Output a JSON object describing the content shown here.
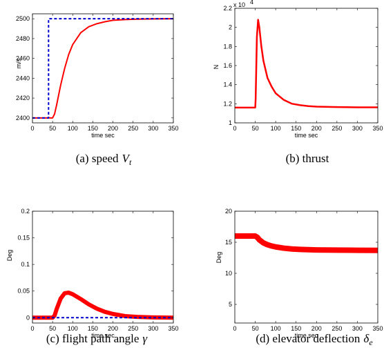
{
  "chart_data": [
    {
      "type": "line",
      "caption": "(a) speed",
      "caption_symbol": "V",
      "caption_sub": "t",
      "xlabel": "time sec",
      "ylabel": "m/s",
      "xlim": [
        0,
        350
      ],
      "ylim": [
        2395,
        2505
      ],
      "xticks": [
        "0",
        "50",
        "100",
        "150",
        "200",
        "250",
        "300",
        "350"
      ],
      "yticks": [
        "2400",
        "2420",
        "2440",
        "2460",
        "2480",
        "2500"
      ],
      "series": [
        {
          "role": "response",
          "color": "#ff0000",
          "style": "solid",
          "width": 2,
          "x": [
            0,
            50,
            55,
            60,
            70,
            80,
            90,
            100,
            120,
            140,
            160,
            180,
            200,
            230,
            260,
            300,
            350
          ],
          "y": [
            2400,
            2400,
            2404,
            2413,
            2433,
            2450,
            2464,
            2474,
            2486,
            2492,
            2495,
            2497,
            2498.5,
            2499.2,
            2499.6,
            2499.9,
            2500
          ]
        },
        {
          "role": "reference",
          "color": "#0000cc",
          "style": "dashed",
          "width": 2,
          "x": [
            0,
            40,
            40,
            350
          ],
          "y": [
            2400,
            2400,
            2500,
            2500
          ]
        }
      ]
    },
    {
      "type": "line",
      "caption": "(b) thrust",
      "xlabel": "time sec",
      "ylabel": "N",
      "exponent_label": "x 10",
      "exponent_power": "4",
      "xlim": [
        0,
        350
      ],
      "ylim": [
        1.0,
        2.2
      ],
      "xticks": [
        "0",
        "50",
        "100",
        "150",
        "200",
        "250",
        "300",
        "350"
      ],
      "yticks": [
        "1",
        "1.2",
        "1.4",
        "1.6",
        "1.8",
        "2",
        "2.2"
      ],
      "series": [
        {
          "role": "response",
          "color": "#ff0000",
          "style": "solid",
          "width": 2.5,
          "x": [
            0,
            50,
            51,
            54,
            57,
            60,
            65,
            70,
            80,
            90,
            100,
            120,
            140,
            160,
            180,
            200,
            250,
            300,
            350
          ],
          "y": [
            1.16,
            1.16,
            1.25,
            1.9,
            2.08,
            2.0,
            1.8,
            1.65,
            1.47,
            1.38,
            1.31,
            1.24,
            1.2,
            1.185,
            1.175,
            1.17,
            1.165,
            1.163,
            1.163
          ]
        }
      ]
    },
    {
      "type": "line",
      "caption": "(c) flight path angle",
      "caption_symbol": "γ",
      "xlabel": "time sec",
      "ylabel": "Deg",
      "xlim": [
        0,
        350
      ],
      "ylim": [
        -0.01,
        0.2
      ],
      "xticks": [
        "0",
        "50",
        "100",
        "150",
        "200",
        "250",
        "300",
        "350"
      ],
      "yticks": [
        "0",
        "0.05",
        "0.1",
        "0.15",
        "0.2"
      ],
      "series": [
        {
          "role": "response",
          "color": "#ff0000",
          "style": "solid",
          "width": 6,
          "x": [
            0,
            50,
            55,
            60,
            70,
            80,
            90,
            100,
            120,
            140,
            160,
            180,
            200,
            230,
            260,
            300,
            350
          ],
          "y": [
            0,
            0,
            0.004,
            0.016,
            0.036,
            0.046,
            0.047,
            0.044,
            0.035,
            0.025,
            0.017,
            0.011,
            0.007,
            0.003,
            0.0015,
            0.0005,
            0
          ]
        },
        {
          "role": "reference",
          "color": "#0000cc",
          "style": "dashed",
          "width": 2,
          "x": [
            0,
            350
          ],
          "y": [
            0,
            0
          ]
        }
      ]
    },
    {
      "type": "line",
      "caption": "(d) elevator deflection",
      "caption_symbol": "δ",
      "caption_sub": "e",
      "xlabel": "time sec",
      "ylabel": "Deg",
      "xlim": [
        0,
        350
      ],
      "ylim": [
        2,
        20
      ],
      "xticks": [
        "0",
        "50",
        "100",
        "150",
        "200",
        "250",
        "300",
        "350"
      ],
      "yticks": [
        "5",
        "10",
        "15",
        "20"
      ],
      "series": [
        {
          "role": "response",
          "color": "#ff0000",
          "style": "solid",
          "width": 8,
          "x": [
            0,
            50,
            55,
            60,
            70,
            80,
            90,
            100,
            120,
            140,
            160,
            180,
            200,
            250,
            300,
            350
          ],
          "y": [
            16,
            16,
            15.8,
            15.4,
            14.9,
            14.6,
            14.4,
            14.25,
            14.05,
            13.92,
            13.85,
            13.8,
            13.77,
            13.73,
            13.71,
            13.7
          ]
        }
      ]
    }
  ]
}
